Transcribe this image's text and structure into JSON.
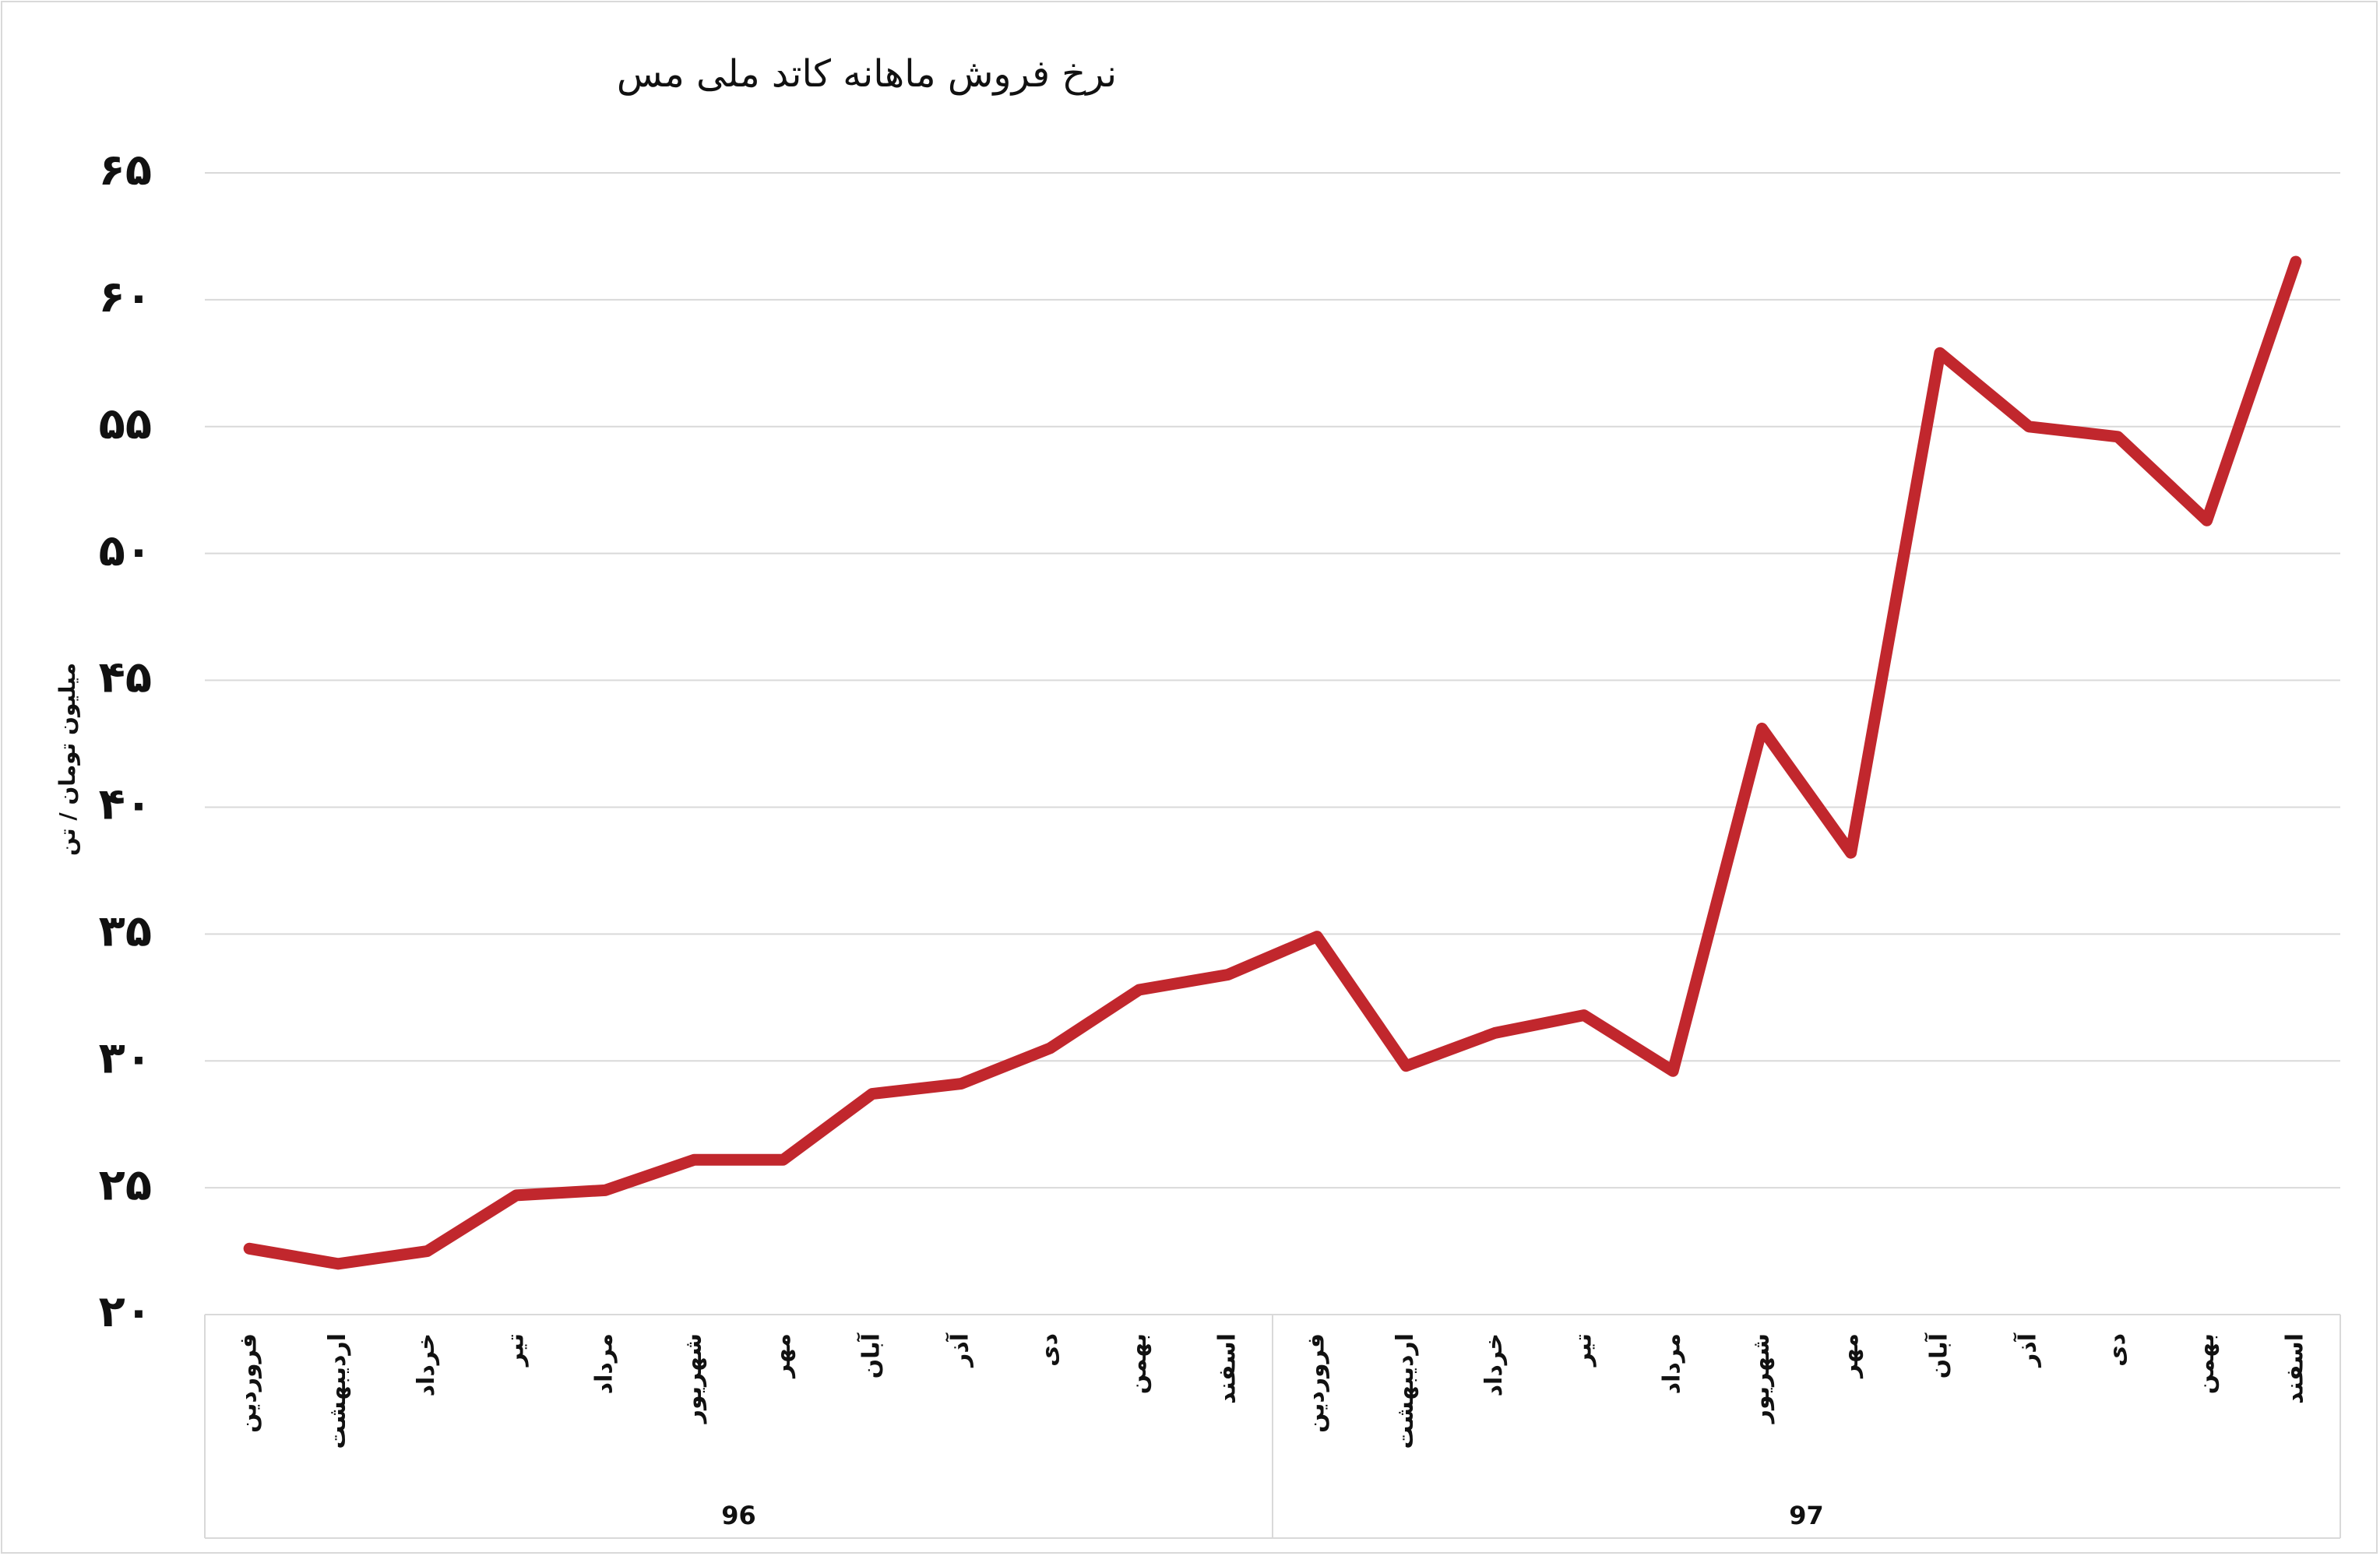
{
  "chart_data": {
    "type": "line",
    "title": "نرخ فروش ماهانه کاتد ملی مس",
    "y_label": "میلیون تومان / تن",
    "categories": [
      "فروردین",
      "اردیبهشت",
      "خرداد",
      "تیر",
      "مرداد",
      "شهریور",
      "مهر",
      "آبان",
      "آذر",
      "دی",
      "بهمن",
      "اسفند",
      "فروردین",
      "اردیبهشت",
      "خرداد",
      "تیر",
      "مرداد",
      "شهریور",
      "مهر",
      "آبان",
      "آذر",
      "دی",
      "بهمن",
      "اسفند"
    ],
    "groups": [
      "96",
      "97"
    ],
    "series": [
      {
        "color": "#c1272d",
        "values": [
          22.6,
          22.0,
          22.5,
          24.7,
          24.9,
          26.1,
          26.1,
          28.7,
          29.1,
          30.5,
          32.8,
          33.4,
          34.9,
          29.8,
          31.1,
          31.8,
          29.6,
          43.1,
          38.2,
          57.9,
          55.0,
          54.6,
          51.3,
          61.5
        ]
      }
    ],
    "ylim": [
      20,
      65
    ],
    "yticks": [
      {
        "value": 20,
        "label": "۲۰"
      },
      {
        "value": 25,
        "label": "۲۵"
      },
      {
        "value": 30,
        "label": "۳۰"
      },
      {
        "value": 35,
        "label": "۳۵"
      },
      {
        "value": 40,
        "label": "۴۰"
      },
      {
        "value": 45,
        "label": "۴۵"
      },
      {
        "value": 50,
        "label": "۵۰"
      },
      {
        "value": 55,
        "label": "۵۵"
      },
      {
        "value": 60,
        "label": "۶۰"
      },
      {
        "value": 65,
        "label": "۶۵"
      }
    ],
    "grid": true
  }
}
